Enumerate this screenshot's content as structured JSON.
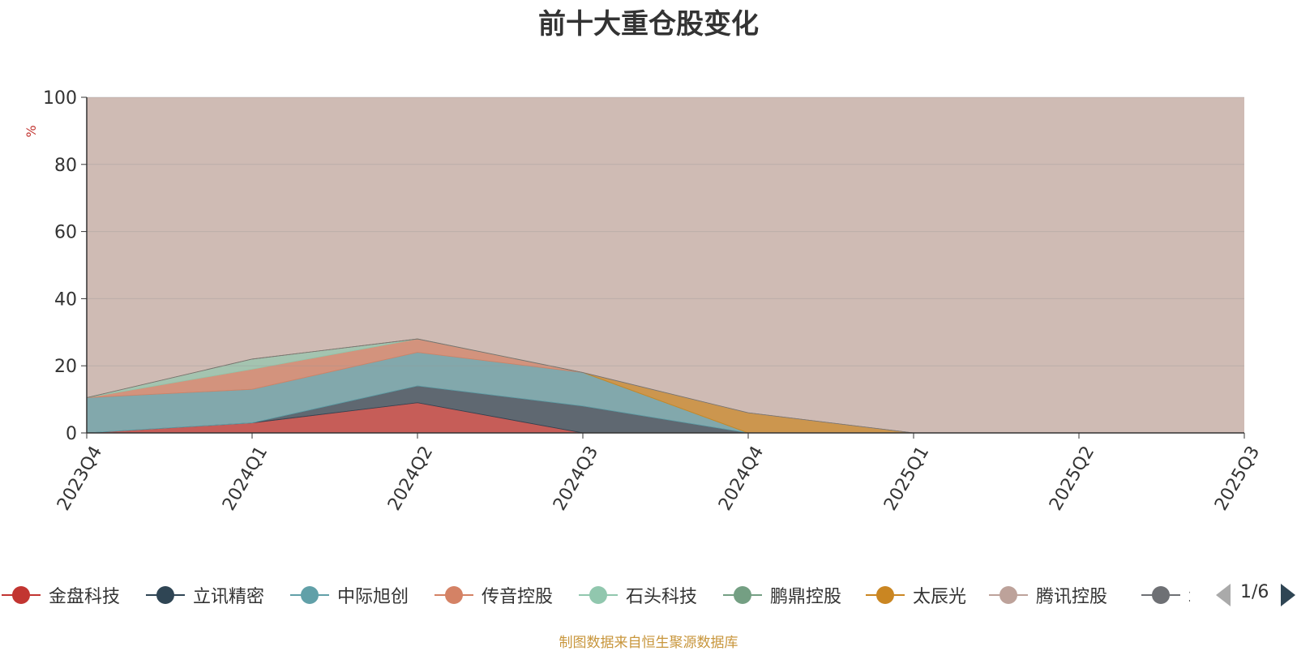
{
  "chart_data": {
    "type": "area",
    "title": "前十大重仓股变化",
    "ylabel": "%",
    "xlabel": "",
    "ylim": [
      0,
      100
    ],
    "yticks": [
      0,
      20,
      40,
      60,
      80,
      100
    ],
    "categories": [
      "2023Q4",
      "2024Q1",
      "2024Q2",
      "2024Q3",
      "2024Q4",
      "2025Q1",
      "2025Q2",
      "2025Q3"
    ],
    "stacked": true,
    "grid": true,
    "legend_position": "bottom",
    "series": [
      {
        "name": "金盘科技",
        "color": "#c23531",
        "values": [
          0,
          3,
          9,
          0,
          0,
          0,
          0,
          0
        ]
      },
      {
        "name": "立讯精密",
        "color": "#2f4554",
        "values": [
          0,
          0,
          5,
          8,
          0,
          0,
          0,
          0
        ]
      },
      {
        "name": "中际旭创",
        "color": "#61a0a8",
        "values": [
          10.5,
          10,
          10,
          10,
          0,
          0,
          0,
          0
        ]
      },
      {
        "name": "传音控股",
        "color": "#d48265",
        "values": [
          0,
          6,
          4,
          0,
          0,
          0,
          0,
          0
        ]
      },
      {
        "name": "石头科技",
        "color": "#91c7ae",
        "values": [
          0,
          3,
          0,
          0,
          0,
          0,
          0,
          0
        ]
      },
      {
        "name": "鹏鼎控股",
        "color": "#749f83",
        "values": [
          0,
          0,
          0,
          0,
          0,
          0,
          0,
          0
        ]
      },
      {
        "name": "太辰光",
        "color": "#ca8622",
        "values": [
          0,
          0,
          0,
          0,
          6,
          0,
          0,
          0
        ]
      },
      {
        "name": "腾讯控股",
        "color": "#bda29a",
        "values": [
          0,
          0,
          0,
          0,
          0,
          0,
          0,
          0
        ]
      },
      {
        "name": "北",
        "color": "#6e7074",
        "values": [
          0,
          0,
          0,
          0,
          0,
          0,
          0,
          0
        ]
      }
    ]
  },
  "legend": {
    "page_indicator": "1/6"
  },
  "source_note": "制图数据来自恒生聚源数据库"
}
